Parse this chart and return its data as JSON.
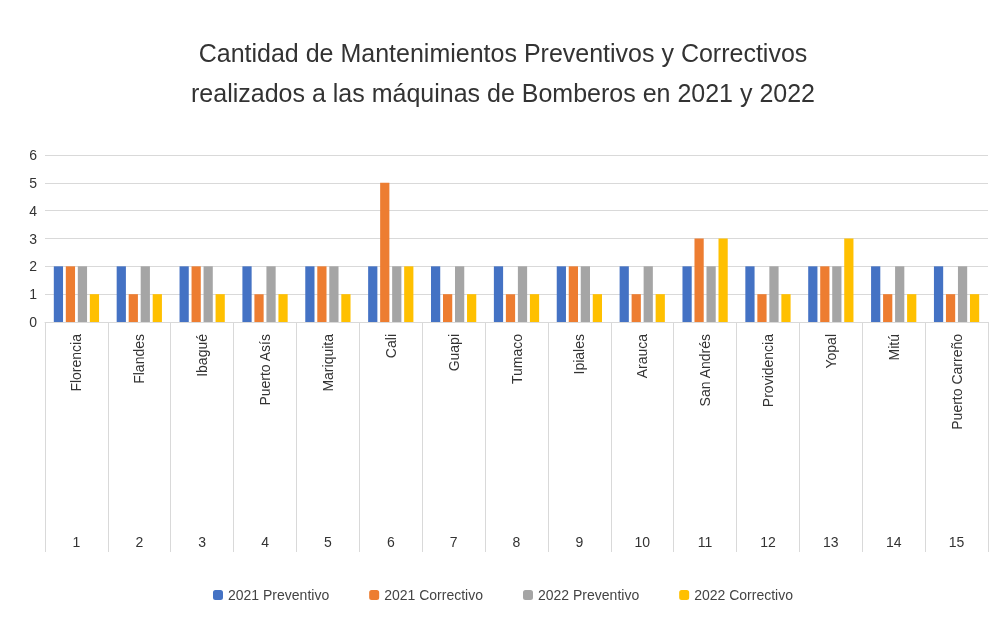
{
  "chart_data": {
    "type": "bar",
    "title": "Cantidad de Mantenimientos Preventivos y Correctivos\nrealizados a las máquinas de Bomberos en 2021 y 2022",
    "categories": [
      "Florencia",
      "Flandes",
      "Ibagué",
      "Puerto Asís",
      "Mariquita",
      "Cali",
      "Guapi",
      "Tumaco",
      "Ipiales",
      "Arauca",
      "San Andrés",
      "Providencia",
      "Yopal",
      "Mitú",
      "Puerto Carreño"
    ],
    "annotations": [
      "1",
      "2",
      "3",
      "4",
      "5",
      "6",
      "7",
      "8",
      "9",
      "10",
      "11",
      "12",
      "13",
      "14",
      "15"
    ],
    "series": [
      {
        "name": "2021 Preventivo",
        "color": "#4472c4",
        "values": [
          2,
          2,
          2,
          2,
          2,
          2,
          2,
          2,
          2,
          2,
          2,
          2,
          2,
          2,
          2
        ]
      },
      {
        "name": "2021 Correctivo",
        "color": "#ed7d31",
        "values": [
          2,
          1,
          2,
          1,
          2,
          5,
          1,
          1,
          2,
          1,
          3,
          1,
          2,
          1,
          1
        ]
      },
      {
        "name": "2022 Preventivo",
        "color": "#a5a5a5",
        "values": [
          2,
          2,
          2,
          2,
          2,
          2,
          2,
          2,
          2,
          2,
          2,
          2,
          2,
          2,
          2
        ]
      },
      {
        "name": "2022 Correctivo",
        "color": "#ffc000",
        "values": [
          1,
          1,
          1,
          1,
          1,
          2,
          1,
          1,
          1,
          1,
          3,
          1,
          3,
          1,
          1
        ]
      }
    ],
    "ylim": [
      0,
      6
    ],
    "yticks": [
      0,
      1,
      2,
      3,
      4,
      5,
      6
    ],
    "grid": "y",
    "legend": "bottom"
  }
}
